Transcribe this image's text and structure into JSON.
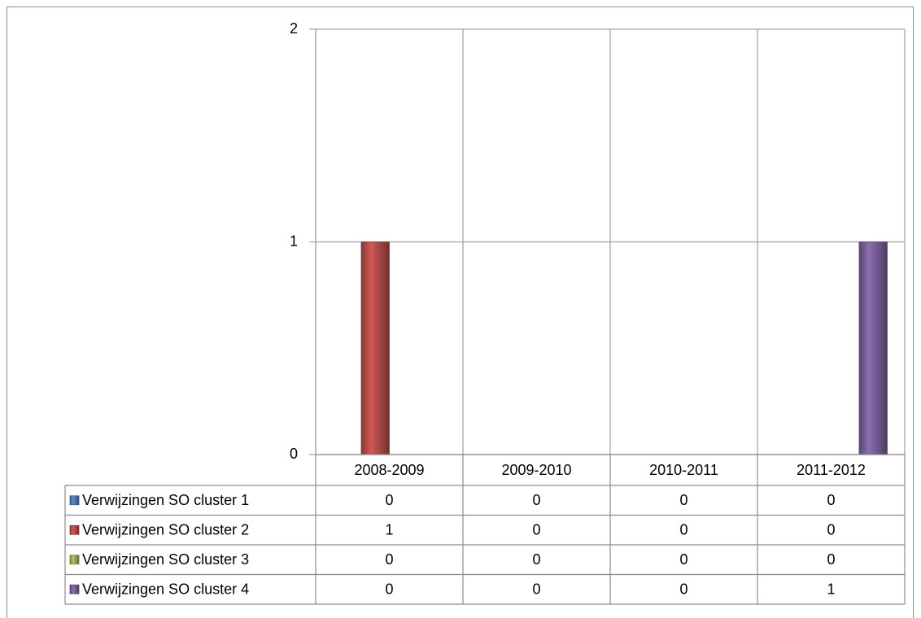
{
  "chart_data": {
    "type": "bar",
    "categories": [
      "2008-2009",
      "2009-2010",
      "2010-2011",
      "2011-2012"
    ],
    "series": [
      {
        "name": "Verwijzingen SO cluster 1",
        "color": "#4f81bd",
        "values": [
          0,
          0,
          0,
          0
        ]
      },
      {
        "name": "Verwijzingen SO cluster 2",
        "color": "#c0504d",
        "values": [
          1,
          0,
          0,
          0
        ]
      },
      {
        "name": "Verwijzingen SO cluster 3",
        "color": "#9bbb59",
        "values": [
          0,
          0,
          0,
          0
        ]
      },
      {
        "name": "Verwijzingen SO cluster 4",
        "color": "#8064a2",
        "values": [
          0,
          0,
          0,
          1
        ]
      }
    ],
    "ylim": [
      0,
      2
    ],
    "yticks": [
      0,
      1,
      2
    ],
    "grid": true,
    "legend": "table"
  }
}
